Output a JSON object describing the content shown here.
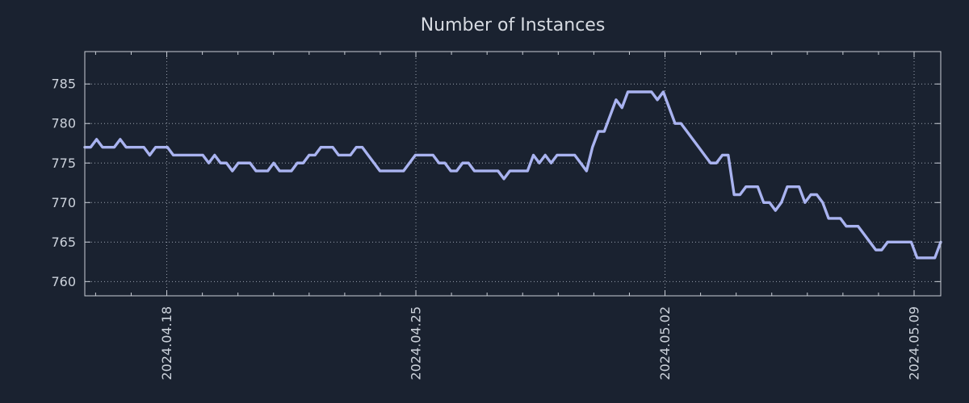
{
  "chart_data": {
    "type": "line",
    "title": "Number of Instances",
    "xlabel": "",
    "ylabel": "",
    "grid": true,
    "legend": "none",
    "x_tick_labels": [
      "2024.04.18",
      "2024.04.25",
      "2024.05.02",
      "2024.05.09"
    ],
    "y_ticks": [
      760,
      765,
      770,
      775,
      780,
      785
    ],
    "ylim": [
      758.2,
      789.1
    ],
    "axis_layout": {
      "x_minor_first_frac": 0.012642,
      "x_minor_step_frac": 0.0415754,
      "x_minor_count": 24,
      "x_major_indices": [
        2,
        9,
        16,
        23
      ]
    },
    "series": [
      {
        "name": "Number of Instances",
        "values": [
          777,
          777,
          778,
          777,
          777,
          777,
          778,
          777,
          777,
          777,
          777,
          776,
          777,
          777,
          777,
          776,
          776,
          776,
          776,
          776,
          776,
          775,
          776,
          775,
          775,
          774,
          775,
          775,
          775,
          774,
          774,
          774,
          775,
          774,
          774,
          774,
          775,
          775,
          776,
          776,
          777,
          777,
          777,
          776,
          776,
          776,
          777,
          777,
          776,
          775,
          774,
          774,
          774,
          774,
          774,
          775,
          776,
          776,
          776,
          776,
          775,
          775,
          774,
          774,
          775,
          775,
          774,
          774,
          774,
          774,
          774,
          773,
          774,
          774,
          774,
          774,
          776,
          775,
          776,
          775,
          776,
          776,
          776,
          776,
          775,
          774,
          777,
          779,
          779,
          781,
          783,
          782,
          784,
          784,
          784,
          784,
          784,
          783,
          784,
          782,
          780,
          780,
          779,
          778,
          777,
          776,
          775,
          775,
          776,
          776,
          771,
          771,
          772,
          772,
          772,
          770,
          770,
          769,
          770,
          772,
          772,
          772,
          770,
          771,
          771,
          770,
          768,
          768,
          768,
          767,
          767,
          767,
          766,
          765,
          764,
          764,
          765,
          765,
          765,
          765,
          765,
          763,
          763,
          763,
          763,
          765
        ]
      }
    ]
  },
  "colors": {
    "background": "#1a2230",
    "line": "#a9b3f0",
    "grid": "#b9c1cd",
    "axis": "#c9ced6",
    "tick_text": "#ccd2db",
    "title_text": "#d6dae1"
  }
}
